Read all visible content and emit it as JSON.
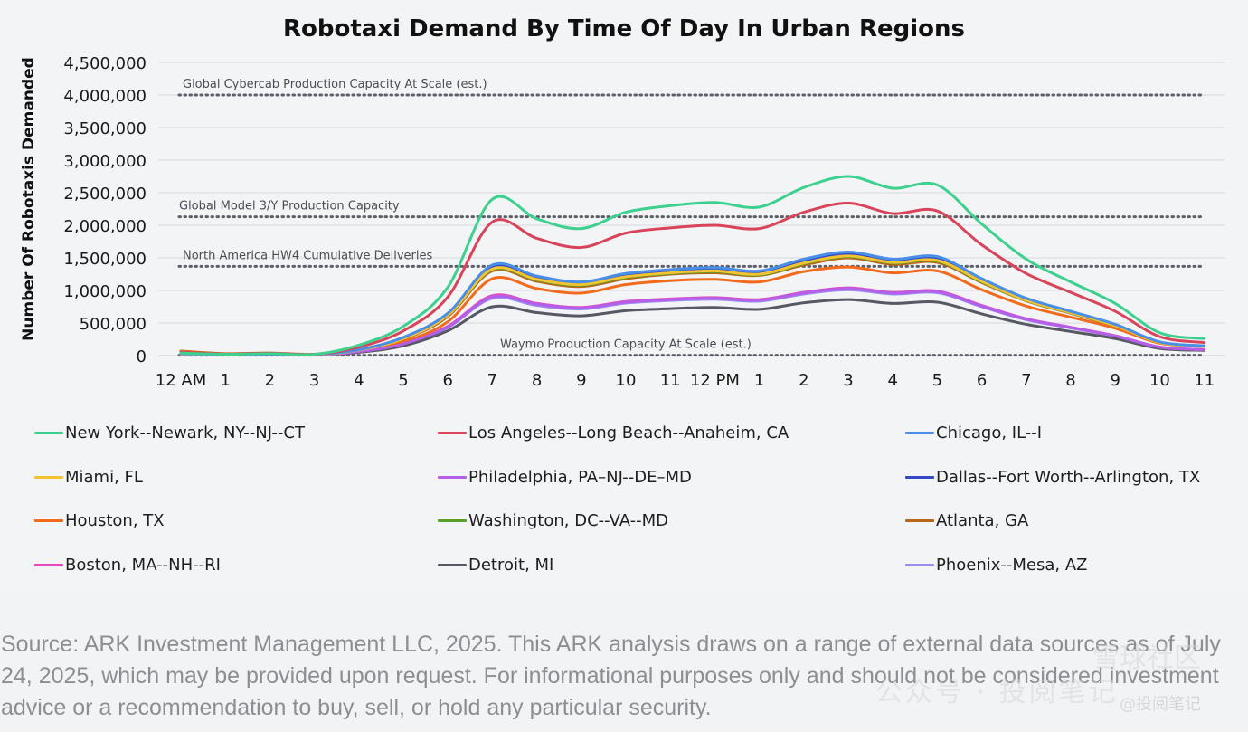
{
  "chart_data": {
    "type": "line",
    "title": "Robotaxi Demand By Time Of Day In Urban Regions",
    "ylabel": "Number Of Robotaxis Demanded",
    "xlabel": "",
    "ylim": [
      0,
      4500000
    ],
    "xlim": [
      0,
      23
    ],
    "yticks": [
      0,
      500000,
      1000000,
      1500000,
      2000000,
      2500000,
      3000000,
      3500000,
      4000000,
      4500000
    ],
    "ytick_labels": [
      "0",
      "500,000",
      "1,000,000",
      "1,500,000",
      "2,000,000",
      "2,500,000",
      "3,000,000",
      "3,500,000",
      "4,000,000",
      "4,500,000"
    ],
    "xticks": [
      0,
      1,
      2,
      3,
      4,
      5,
      6,
      7,
      8,
      9,
      10,
      11,
      12,
      13,
      14,
      15,
      16,
      17,
      18,
      19,
      20,
      21,
      22,
      23
    ],
    "xtick_labels": [
      "12 AM",
      "1",
      "2",
      "3",
      "4",
      "5",
      "6",
      "7",
      "8",
      "9",
      "10",
      "11",
      "12 PM",
      "1",
      "2",
      "3",
      "4",
      "5",
      "6",
      "7",
      "8",
      "9",
      "10",
      "11"
    ],
    "grid": true,
    "legend_position": "bottom",
    "reference_lines": [
      {
        "label": "Global Cybercab Production Capacity At Scale (est.)",
        "value": 4000000
      },
      {
        "label": "Global Model 3/Y Production Capacity",
        "value": 2130000
      },
      {
        "label": "North America HW4 Cumulative Deliveries",
        "value": 1370000
      },
      {
        "label": "Waymo Production Capacity At Scale (est.)",
        "value": 5000
      }
    ],
    "x": [
      0,
      1,
      2,
      3,
      4,
      5,
      6,
      7,
      8,
      9,
      10,
      11,
      12,
      13,
      14,
      15,
      16,
      17,
      18,
      19,
      20,
      21,
      22,
      23
    ],
    "series": [
      {
        "name": "New York--Newark, NY--NJ--CT",
        "color": "#3ed08e",
        "values": [
          40000,
          20000,
          30000,
          20000,
          160000,
          450000,
          1050000,
          2400000,
          2100000,
          1950000,
          2200000,
          2300000,
          2350000,
          2280000,
          2580000,
          2750000,
          2570000,
          2620000,
          2020000,
          1480000,
          1130000,
          800000,
          350000,
          260000
        ]
      },
      {
        "name": "Los Angeles--Long Beach--Anaheim, CA",
        "color": "#d8445a",
        "values": [
          50000,
          25000,
          35000,
          20000,
          130000,
          380000,
          900000,
          2050000,
          1800000,
          1660000,
          1880000,
          1960000,
          2000000,
          1950000,
          2200000,
          2340000,
          2180000,
          2220000,
          1700000,
          1260000,
          970000,
          680000,
          290000,
          200000
        ]
      },
      {
        "name": "Chicago, IL--I",
        "color": "#4a8fe7",
        "values": [
          30000,
          15000,
          20000,
          15000,
          90000,
          280000,
          650000,
          1390000,
          1220000,
          1130000,
          1260000,
          1320000,
          1350000,
          1300000,
          1480000,
          1590000,
          1480000,
          1520000,
          1180000,
          880000,
          680000,
          480000,
          210000,
          150000
        ]
      },
      {
        "name": "Miami, FL",
        "color": "#f4c430",
        "values": [
          25000,
          15000,
          20000,
          12000,
          85000,
          260000,
          620000,
          1330000,
          1170000,
          1090000,
          1210000,
          1270000,
          1300000,
          1250000,
          1420000,
          1530000,
          1430000,
          1460000,
          1140000,
          850000,
          660000,
          460000,
          200000,
          140000
        ]
      },
      {
        "name": "Philadelphia, PA–NJ--DE–MD",
        "color": "#b55ee8",
        "values": [
          20000,
          10000,
          15000,
          10000,
          60000,
          180000,
          440000,
          900000,
          790000,
          730000,
          820000,
          860000,
          880000,
          850000,
          960000,
          1030000,
          960000,
          980000,
          760000,
          560000,
          430000,
          300000,
          130000,
          90000
        ]
      },
      {
        "name": "Dallas--Fort Worth--Arlington, TX",
        "color": "#3548c8",
        "values": [
          30000,
          15000,
          20000,
          15000,
          88000,
          270000,
          630000,
          1360000,
          1190000,
          1110000,
          1230000,
          1290000,
          1320000,
          1270000,
          1450000,
          1560000,
          1450000,
          1490000,
          1160000,
          860000,
          670000,
          470000,
          205000,
          145000
        ]
      },
      {
        "name": "Houston, TX",
        "color": "#f26b1d",
        "values": [
          60000,
          25000,
          30000,
          15000,
          70000,
          210000,
          520000,
          1180000,
          1030000,
          960000,
          1090000,
          1150000,
          1170000,
          1130000,
          1290000,
          1360000,
          1270000,
          1300000,
          1010000,
          760000,
          590000,
          420000,
          190000,
          140000
        ]
      },
      {
        "name": "Washington, DC--VA--MD",
        "color": "#5a9e2a",
        "values": [
          28000,
          14000,
          19000,
          14000,
          86000,
          265000,
          615000,
          1320000,
          1160000,
          1080000,
          1200000,
          1260000,
          1290000,
          1240000,
          1410000,
          1520000,
          1420000,
          1450000,
          1130000,
          845000,
          655000,
          455000,
          198000,
          138000
        ]
      },
      {
        "name": "Atlanta, GA",
        "color": "#b8661a",
        "values": [
          70000,
          30000,
          40000,
          20000,
          80000,
          250000,
          600000,
          1300000,
          1140000,
          1060000,
          1180000,
          1250000,
          1270000,
          1230000,
          1390000,
          1500000,
          1400000,
          1430000,
          1120000,
          840000,
          650000,
          450000,
          200000,
          150000
        ]
      },
      {
        "name": "Boston, MA--NH--RI",
        "color": "#e34bbd",
        "values": [
          22000,
          11000,
          16000,
          11000,
          62000,
          185000,
          450000,
          920000,
          800000,
          740000,
          830000,
          870000,
          890000,
          860000,
          970000,
          1040000,
          970000,
          990000,
          770000,
          565000,
          435000,
          305000,
          132000,
          92000
        ]
      },
      {
        "name": "Detroit, MI",
        "color": "#565963",
        "values": [
          18000,
          9000,
          13000,
          9000,
          50000,
          150000,
          380000,
          750000,
          660000,
          610000,
          690000,
          720000,
          740000,
          710000,
          810000,
          860000,
          800000,
          820000,
          640000,
          480000,
          370000,
          260000,
          110000,
          80000
        ]
      },
      {
        "name": "Phoenix--Mesa, AZ",
        "color": "#9b8cf0",
        "values": [
          20000,
          10000,
          14000,
          10000,
          58000,
          175000,
          430000,
          880000,
          770000,
          715000,
          805000,
          845000,
          865000,
          835000,
          945000,
          1010000,
          945000,
          965000,
          750000,
          550000,
          425000,
          295000,
          128000,
          88000
        ]
      }
    ]
  },
  "footer": {
    "source": "Source: ARK Investment Management LLC, 2025. This ARK analysis draws on a range of external data sources as of July 24, 2025, which may be provided upon request. For informational purposes only and should not be considered investment advice or a recommendation to buy, sell, or hold any particular security."
  },
  "watermark": {
    "main": "公众号 · 投阅笔记",
    "top": "雪球社区",
    "sub": "@投阅笔记"
  }
}
